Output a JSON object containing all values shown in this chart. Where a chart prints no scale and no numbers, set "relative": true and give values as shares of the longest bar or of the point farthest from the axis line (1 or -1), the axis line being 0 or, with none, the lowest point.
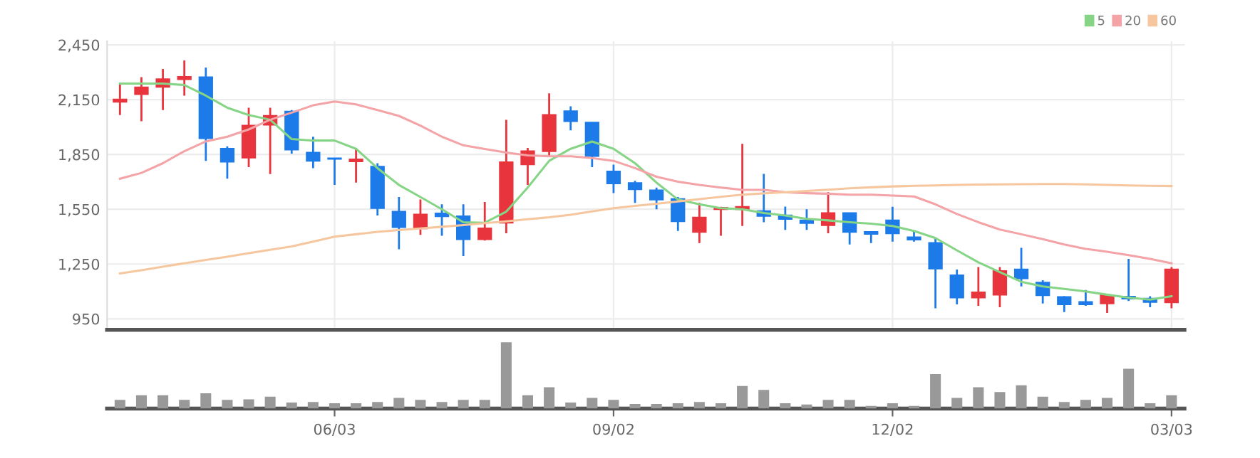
{
  "chart_data": [
    {
      "type": "candlestick",
      "categories": [
        null,
        null,
        null,
        null,
        null,
        null,
        null,
        null,
        null,
        null,
        null,
        null,
        null,
        null,
        null,
        null,
        null,
        null,
        null,
        null,
        null,
        null,
        null,
        null,
        null,
        null,
        null,
        null,
        null,
        null,
        null,
        null,
        null,
        null,
        null,
        null,
        null,
        null,
        null,
        null,
        null,
        null,
        null,
        null,
        null,
        null,
        null,
        null,
        null,
        null
      ],
      "ohlc": [
        [
          2138,
          2238,
          2066,
          2151
        ],
        [
          2180,
          2273,
          2032,
          2217
        ],
        [
          2220,
          2318,
          2093,
          2262
        ],
        [
          2262,
          2365,
          2172,
          2275
        ],
        [
          2273,
          2326,
          1815,
          1939
        ],
        [
          1881,
          1894,
          1717,
          1810
        ],
        [
          1833,
          2106,
          1781,
          2008
        ],
        [
          2013,
          2106,
          1743,
          2061
        ],
        [
          2085,
          2093,
          1855,
          1876
        ],
        [
          1860,
          1947,
          1775,
          1815
        ],
        [
          1829,
          1829,
          1683,
          1826
        ],
        [
          1812,
          1886,
          1696,
          1823
        ],
        [
          1783,
          1802,
          1516,
          1556
        ],
        [
          1537,
          1617,
          1331,
          1452
        ],
        [
          1445,
          1603,
          1410,
          1521
        ],
        [
          1527,
          1577,
          1405,
          1511
        ],
        [
          1511,
          1577,
          1294,
          1386
        ],
        [
          1386,
          1590,
          1378,
          1445
        ],
        [
          1476,
          2040,
          1418,
          1807
        ],
        [
          1796,
          1886,
          1683,
          1868
        ],
        [
          1868,
          2185,
          1841,
          2066
        ],
        [
          2087,
          2114,
          1982,
          2032
        ],
        [
          2024,
          2024,
          1781,
          1841
        ],
        [
          1757,
          1794,
          1638,
          1691
        ],
        [
          1693,
          1706,
          1585,
          1659
        ],
        [
          1654,
          1669,
          1550,
          1603
        ],
        [
          1606,
          1617,
          1431,
          1484
        ],
        [
          1426,
          1585,
          1365,
          1505
        ],
        [
          1550,
          1563,
          1405,
          1558
        ],
        [
          1550,
          1908,
          1458,
          1563
        ],
        [
          1540,
          1744,
          1479,
          1513
        ],
        [
          1516,
          1564,
          1437,
          1497
        ],
        [
          1489,
          1550,
          1437,
          1474
        ],
        [
          1463,
          1643,
          1418,
          1529
        ],
        [
          1529,
          1529,
          1357,
          1426
        ],
        [
          1426,
          1426,
          1365,
          1415
        ],
        [
          1489,
          1563,
          1373,
          1418
        ],
        [
          1397,
          1431,
          1373,
          1384
        ],
        [
          1365,
          1392,
          1008,
          1225
        ],
        [
          1188,
          1220,
          1029,
          1066
        ],
        [
          1066,
          1233,
          1021,
          1095
        ],
        [
          1082,
          1233,
          1013,
          1212
        ],
        [
          1220,
          1339,
          1127,
          1172
        ],
        [
          1148,
          1161,
          1034,
          1079
        ],
        [
          1069,
          1074,
          987,
          1029
        ],
        [
          1042,
          1108,
          1021,
          1029
        ],
        [
          1034,
          1087,
          982,
          1079
        ],
        [
          1071,
          1278,
          1047,
          1061
        ],
        [
          1061,
          1074,
          1013,
          1042
        ],
        [
          1040,
          1233,
          1008,
          1220
        ]
      ],
      "colors": [
        "#e8343d",
        "#e8343d",
        "#e8343d",
        "#e8343d",
        "#1c7be8",
        "#1c7be8",
        "#e8343d",
        "#e8343d",
        "#1c7be8",
        "#1c7be8",
        "#1c7be8",
        "#e8343d",
        "#1c7be8",
        "#1c7be8",
        "#e8343d",
        "#1c7be8",
        "#1c7be8",
        "#e8343d",
        "#e8343d",
        "#e8343d",
        "#e8343d",
        "#1c7be8",
        "#1c7be8",
        "#1c7be8",
        "#1c7be8",
        "#1c7be8",
        "#1c7be8",
        "#e8343d",
        "#e8343d",
        "#e8343d",
        "#1c7be8",
        "#1c7be8",
        "#1c7be8",
        "#e8343d",
        "#1c7be8",
        "#1c7be8",
        "#1c7be8",
        "#1c7be8",
        "#1c7be8",
        "#1c7be8",
        "#e8343d",
        "#e8343d",
        "#1c7be8",
        "#1c7be8",
        "#1c7be8",
        "#1c7be8",
        "#e8343d",
        "#1c7be8",
        "#1c7be8",
        "#e8343d"
      ],
      "series": [
        {
          "name": "5",
          "type": "line",
          "color": "#86d486",
          "values": [
            2238,
            2238,
            2238,
            2230,
            2172,
            2106,
            2066,
            2040,
            1934,
            1926,
            1926,
            1881,
            1775,
            1683,
            1617,
            1550,
            1479,
            1476,
            1537,
            1669,
            1815,
            1881,
            1921,
            1881,
            1802,
            1696,
            1603,
            1577,
            1556,
            1550,
            1529,
            1516,
            1497,
            1489,
            1479,
            1471,
            1458,
            1431,
            1392,
            1325,
            1259,
            1206,
            1153,
            1127,
            1114,
            1100,
            1082,
            1066,
            1055,
            1074
          ]
        },
        {
          "name": "20",
          "type": "line",
          "color": "#f4a3a6",
          "values": [
            1717,
            1749,
            1802,
            1868,
            1921,
            1947,
            1987,
            2040,
            2079,
            2119,
            2140,
            2124,
            2093,
            2061,
            2008,
            1947,
            1900,
            1880,
            1860,
            1845,
            1840,
            1840,
            1830,
            1815,
            1775,
            1728,
            1701,
            1683,
            1669,
            1656,
            1656,
            1643,
            1638,
            1635,
            1630,
            1630,
            1625,
            1620,
            1577,
            1524,
            1479,
            1439,
            1413,
            1386,
            1357,
            1333,
            1317,
            1299,
            1278,
            1254
          ]
        },
        {
          "name": "60",
          "type": "line",
          "color": "#f6c79e",
          "values": [
            1198,
            1216,
            1235,
            1254,
            1272,
            1290,
            1309,
            1328,
            1346,
            1373,
            1400,
            1413,
            1426,
            1436,
            1445,
            1454,
            1463,
            1474,
            1484,
            1495,
            1506,
            1520,
            1538,
            1556,
            1568,
            1580,
            1593,
            1605,
            1618,
            1630,
            1637,
            1643,
            1650,
            1657,
            1665,
            1670,
            1675,
            1678,
            1680,
            1683,
            1685,
            1686,
            1687,
            1688,
            1688,
            1686,
            1683,
            1680,
            1678,
            1677
          ]
        }
      ],
      "ylim": [
        890,
        2470
      ],
      "yticks": [
        {
          "value": 950,
          "label": "950"
        },
        {
          "value": 1250,
          "label": "1,250"
        },
        {
          "value": 1550,
          "label": "1,550"
        },
        {
          "value": 1850,
          "label": "1,850"
        },
        {
          "value": 2150,
          "label": "2,150"
        },
        {
          "value": 2450,
          "label": "2,450"
        }
      ],
      "grid": true,
      "legend": "top right",
      "tick_labels": "y"
    },
    {
      "type": "bar",
      "categories": [
        null,
        null,
        null,
        null,
        null,
        null,
        null,
        null,
        null,
        null,
        "06/03",
        null,
        null,
        null,
        null,
        null,
        null,
        null,
        null,
        null,
        null,
        null,
        null,
        "09/02",
        null,
        null,
        null,
        null,
        null,
        null,
        null,
        null,
        null,
        null,
        null,
        null,
        "12/02",
        null,
        null,
        null,
        null,
        null,
        null,
        null,
        null,
        null,
        null,
        null,
        null,
        "03/03"
      ],
      "values": [
        0.13,
        0.2,
        0.2,
        0.13,
        0.23,
        0.13,
        0.14,
        0.18,
        0.09,
        0.1,
        0.08,
        0.08,
        0.1,
        0.16,
        0.13,
        0.1,
        0.13,
        0.13,
        1,
        0.2,
        0.32,
        0.09,
        0.16,
        0.13,
        0.07,
        0.07,
        0.08,
        0.1,
        0.08,
        0.34,
        0.28,
        0.08,
        0.06,
        0.13,
        0.13,
        0.04,
        0.08,
        0.04,
        0.52,
        0.16,
        0.32,
        0.25,
        0.35,
        0.18,
        0.1,
        0.13,
        0.16,
        0.6,
        0.08,
        0.2
      ],
      "color": "#999999",
      "relative": true,
      "tick_labels": "x"
    }
  ]
}
